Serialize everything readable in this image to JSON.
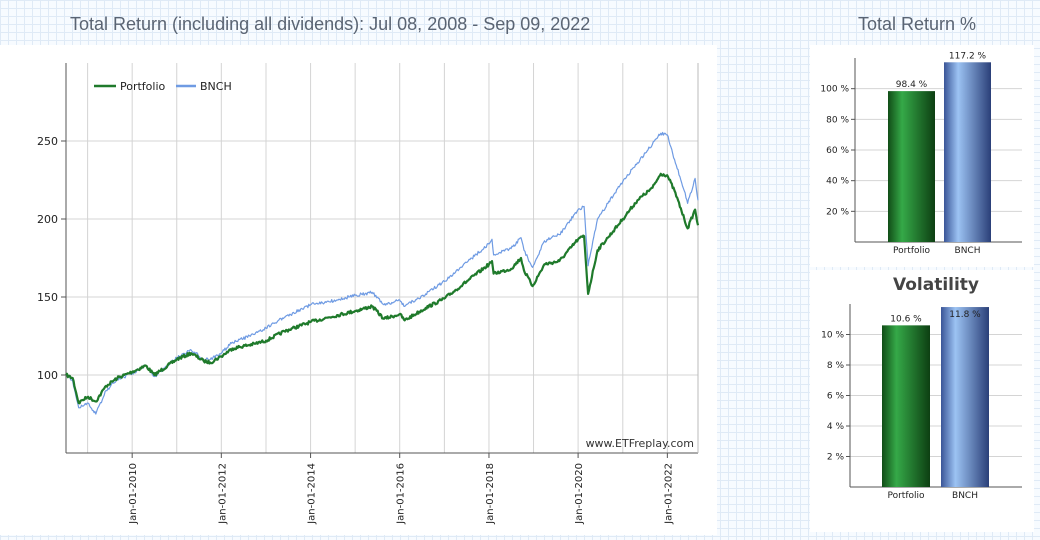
{
  "page": {
    "main_title": "Total Return (including all dividends): Jul 08, 2008 - Sep 09, 2022",
    "side_title": "Total Return %"
  },
  "colors": {
    "portfolio": "#1f7a2b",
    "benchmark": "#6f9be3",
    "grid": "#d4d4d4"
  },
  "chart_data": [
    {
      "type": "line",
      "title": "Total Return (including all dividends): Jul 08, 2008 - Sep 09, 2022",
      "legend_position": "top-left",
      "grid": true,
      "watermark": "www.ETFreplay.com",
      "xlim": [
        "2008-07-08",
        "2022-09-09"
      ],
      "ylim": [
        50,
        300
      ],
      "yticks": [
        100,
        150,
        200,
        250
      ],
      "xticks": [
        "Jan-01-2010",
        "Jan-01-2012",
        "Jan-01-2014",
        "Jan-01-2016",
        "Jan-01-2018",
        "Jan-01-2020",
        "Jan-01-2022"
      ],
      "series": [
        {
          "name": "Portfolio",
          "x": [
            "2008-07-08",
            "2008-09-01",
            "2008-10-20",
            "2008-11-20",
            "2009-01-05",
            "2009-03-09",
            "2009-06-01",
            "2009-09-01",
            "2010-01-01",
            "2010-04-23",
            "2010-07-01",
            "2011-01-01",
            "2011-04-29",
            "2011-08-10",
            "2011-10-03",
            "2012-01-01",
            "2012-04-01",
            "2012-10-01",
            "2013-01-01",
            "2013-06-01",
            "2014-01-01",
            "2014-06-01",
            "2015-01-01",
            "2015-05-20",
            "2015-08-25",
            "2016-01-01",
            "2016-02-11",
            "2016-08-01",
            "2017-01-01",
            "2017-06-01",
            "2018-01-01",
            "2018-01-26",
            "2018-02-08",
            "2018-07-01",
            "2018-09-20",
            "2018-10-15",
            "2018-12-24",
            "2019-04-01",
            "2019-08-01",
            "2020-01-01",
            "2020-02-19",
            "2020-03-23",
            "2020-06-08",
            "2020-09-01",
            "2021-01-01",
            "2021-05-01",
            "2021-09-01",
            "2021-11-08",
            "2021-12-31",
            "2022-03-01",
            "2022-05-20",
            "2022-06-16",
            "2022-08-16",
            "2022-09-09"
          ],
          "values": [
            100,
            98,
            82,
            84,
            86,
            83,
            93,
            98,
            102,
            106,
            100,
            110,
            114,
            109,
            108,
            112,
            117,
            120,
            122,
            128,
            134,
            137,
            141,
            144,
            136,
            139,
            135,
            143,
            149,
            158,
            171,
            173,
            165,
            168,
            175,
            167,
            157,
            171,
            173,
            187,
            189,
            152,
            180,
            188,
            200,
            212,
            220,
            229,
            228,
            218,
            200,
            194,
            206,
            196
          ]
        },
        {
          "name": "BNCH",
          "x": [
            "2008-07-08",
            "2008-09-01",
            "2008-10-20",
            "2008-11-20",
            "2009-01-05",
            "2009-03-09",
            "2009-06-01",
            "2009-09-01",
            "2010-01-01",
            "2010-04-23",
            "2010-07-01",
            "2011-01-01",
            "2011-04-29",
            "2011-08-10",
            "2011-10-03",
            "2012-01-01",
            "2012-04-01",
            "2012-10-01",
            "2013-01-01",
            "2013-06-01",
            "2014-01-01",
            "2014-06-01",
            "2015-01-01",
            "2015-05-20",
            "2015-08-25",
            "2016-01-01",
            "2016-02-11",
            "2016-08-01",
            "2017-01-01",
            "2017-06-01",
            "2018-01-01",
            "2018-01-26",
            "2018-02-08",
            "2018-07-01",
            "2018-09-20",
            "2018-10-15",
            "2018-12-24",
            "2019-04-01",
            "2019-08-01",
            "2020-01-01",
            "2020-02-19",
            "2020-03-23",
            "2020-06-08",
            "2020-09-01",
            "2021-01-01",
            "2021-05-01",
            "2021-09-01",
            "2021-11-08",
            "2021-12-31",
            "2022-03-01",
            "2022-05-20",
            "2022-06-16",
            "2022-08-16",
            "2022-09-09"
          ],
          "values": [
            100,
            96,
            79,
            80,
            82,
            75,
            90,
            97,
            101,
            106,
            99,
            111,
            116,
            110,
            110,
            114,
            121,
            126,
            130,
            137,
            145,
            147,
            151,
            153,
            145,
            148,
            144,
            152,
            160,
            170,
            184,
            187,
            177,
            181,
            188,
            180,
            169,
            186,
            190,
            206,
            208,
            170,
            200,
            210,
            224,
            236,
            248,
            255,
            254,
            238,
            218,
            210,
            226,
            212
          ]
        }
      ]
    },
    {
      "type": "bar",
      "title": "Total Return %",
      "categories": [
        "Portfolio",
        "BNCH"
      ],
      "values": [
        98.4,
        117.2
      ],
      "value_labels": [
        "98.4 %",
        "117.2 %"
      ],
      "ylim": [
        0,
        120
      ],
      "yticks": [
        "20 %",
        "40 %",
        "60 %",
        "80 %",
        "100 %"
      ],
      "ytick_values": [
        20,
        40,
        60,
        80,
        100
      ]
    },
    {
      "type": "bar",
      "title": "Volatility",
      "categories": [
        "Portfolio",
        "BNCH"
      ],
      "values": [
        10.6,
        11.8
      ],
      "value_labels": [
        "10.6 %",
        "11.8 %"
      ],
      "ylim": [
        0,
        12
      ],
      "yticks": [
        "2 %",
        "4 %",
        "6 %",
        "8 %",
        "10 %"
      ],
      "ytick_values": [
        2,
        4,
        6,
        8,
        10
      ]
    }
  ]
}
